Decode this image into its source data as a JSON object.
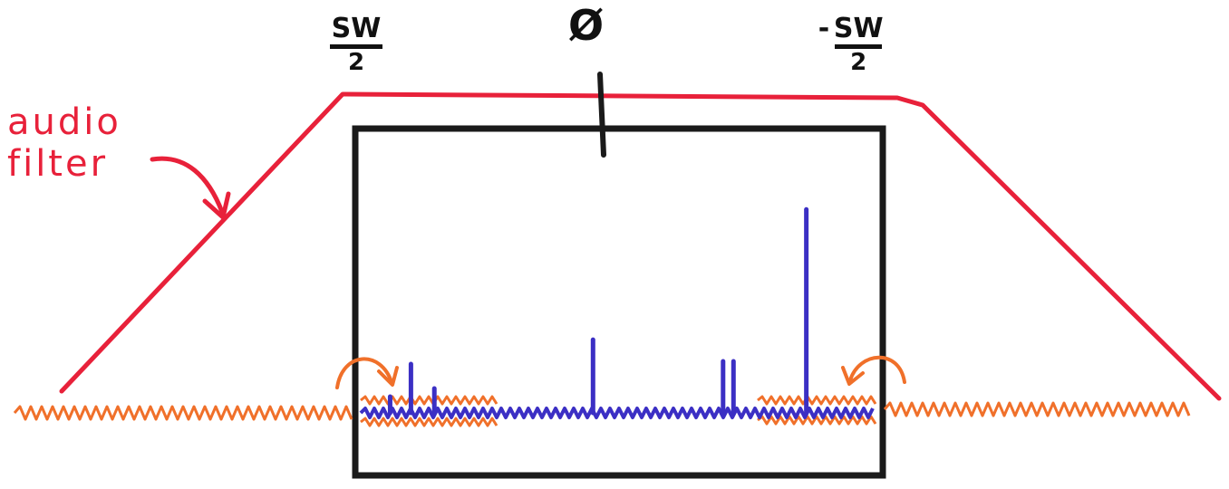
{
  "labels": {
    "audio_line1": "audio",
    "audio_line2": "filter",
    "center": "Ø",
    "left_edge_num": "SW",
    "left_edge_den": "2",
    "right_edge_sign": "-",
    "right_edge_num": "SW",
    "right_edge_den": "2"
  },
  "colors": {
    "filter": "#e8213a",
    "spectrum": "#3b2fc4",
    "noise": "#f0702a",
    "window": "#1a1a1a",
    "ink": "#111111"
  },
  "spectrum": {
    "peaks": [
      {
        "freq": -0.88,
        "height": 0.06
      },
      {
        "freq": -0.8,
        "height": 0.18
      },
      {
        "freq": -0.71,
        "height": 0.09
      },
      {
        "freq": -0.1,
        "height": 0.27
      },
      {
        "freq": 0.4,
        "height": 0.19
      },
      {
        "freq": 0.44,
        "height": 0.19
      },
      {
        "freq": 0.72,
        "height": 0.75
      }
    ]
  }
}
